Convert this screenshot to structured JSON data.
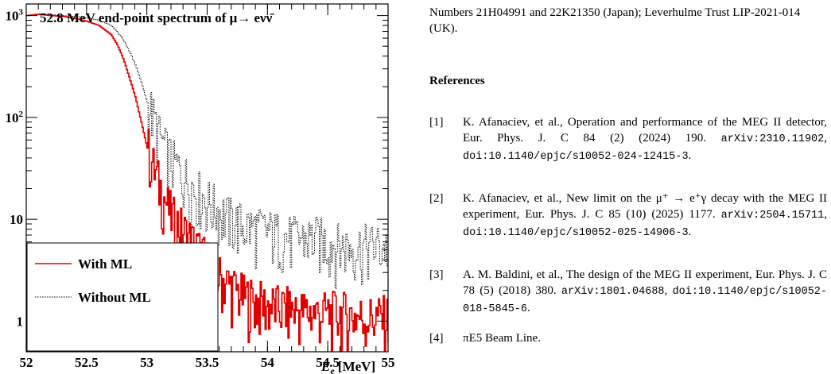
{
  "chart_data": {
    "type": "line",
    "title": "52.8 MeV end-point spectrum of  μ→ eνν̄",
    "xlabel": "E_e [MeV]",
    "ylabel": "",
    "xlim": [
      52,
      55
    ],
    "ylim": [
      0.5,
      1300
    ],
    "yscale": "log",
    "x_ticks": [
      "52",
      "52.5",
      "53",
      "53.5",
      "54",
      "54.5",
      "55"
    ],
    "y_ticks": [
      "1",
      "10",
      "10^2",
      "10^3"
    ],
    "legend": {
      "placement": "bottom-left",
      "entries": [
        "With ML",
        "Without ML"
      ]
    },
    "series": [
      {
        "name": "With ML",
        "color": "#e00000",
        "x": [
          52.0,
          52.1,
          52.2,
          52.3,
          52.4,
          52.5,
          52.6,
          52.7,
          52.75,
          52.8,
          52.85,
          52.9,
          52.95,
          53.0,
          53.05,
          53.1,
          53.15,
          53.2,
          53.3,
          53.4,
          53.5,
          53.6,
          53.7,
          53.8,
          54.0,
          54.2,
          54.4,
          54.6,
          54.8,
          55.0
        ],
        "y": [
          1000,
          1030,
          1000,
          980,
          940,
          880,
          800,
          650,
          520,
          380,
          250,
          160,
          90,
          50,
          30,
          20,
          14,
          10,
          7,
          5,
          3.5,
          2.5,
          2,
          1.6,
          1.3,
          1.2,
          1.1,
          1.1,
          1.0,
          1.0
        ]
      },
      {
        "name": "Without ML",
        "color": "#000000",
        "x": [
          52.0,
          52.1,
          52.2,
          52.3,
          52.4,
          52.5,
          52.6,
          52.7,
          52.75,
          52.8,
          52.85,
          52.9,
          52.95,
          53.0,
          53.05,
          53.1,
          53.15,
          53.2,
          53.3,
          53.4,
          53.5,
          53.6,
          53.7,
          53.8,
          54.0,
          54.2,
          54.4,
          54.6,
          54.8,
          55.0
        ],
        "y": [
          1000,
          1040,
          1020,
          1000,
          980,
          950,
          900,
          800,
          700,
          580,
          450,
          330,
          220,
          140,
          90,
          60,
          45,
          35,
          25,
          18,
          14,
          11,
          9,
          8,
          7,
          6,
          6,
          5,
          5,
          5
        ]
      }
    ]
  },
  "funding": "Numbers 21H04991 and 22K21350 (Japan); Leverhulme Trust LIP-2021-014 (UK).",
  "references_heading": "References",
  "references": [
    {
      "num": "[1]",
      "text": "K. Afanaciev, et al., Operation and performance of the MEG II detector, Eur. Phys. J. C 84 (2) (2024) 190.",
      "arxiv": "arXiv:2310.11902",
      "doi": "doi:10.1140/epjc/s10052-024-12415-3"
    },
    {
      "num": "[2]",
      "text": "K. Afanaciev, et al., New limit on the μ⁺ → e⁺γ decay with the MEG II experiment, Eur. Phys. J. C 85 (10) (2025) 1177.",
      "arxiv": "arXiv:2504.15711",
      "doi": "doi:10.1140/epjc/s10052-025-14906-3"
    },
    {
      "num": "[3]",
      "text": "A. M. Baldini, et al., The design of the MEG II experiment, Eur. Phys. J. C 78 (5) (2018) 380.",
      "arxiv": "arXiv:1801.04688",
      "doi": "doi:10.1140/epjc/s10052-018-5845-6"
    },
    {
      "num": "[4]",
      "text": "πE5 Beam Line.",
      "arxiv": "",
      "doi": ""
    }
  ]
}
